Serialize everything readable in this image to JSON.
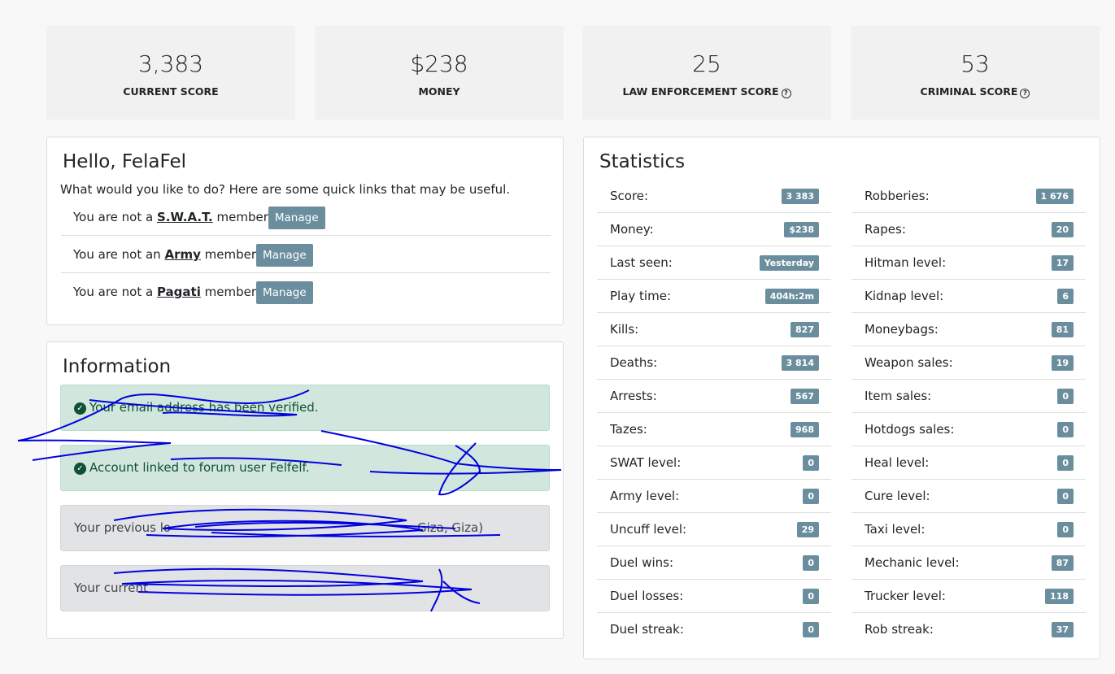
{
  "summary": [
    {
      "value": "3,383",
      "label": "CURRENT SCORE"
    },
    {
      "value": "$238",
      "label": "MONEY"
    },
    {
      "value": "25",
      "label": "LAW ENFORCEMENT SCORE",
      "help": true
    },
    {
      "value": "53",
      "label": "CRIMINAL SCORE",
      "help": true
    }
  ],
  "welcome": {
    "title": "Hello, FelaFel",
    "intro": "What would you like to do? Here are some quick links that may be useful.",
    "links": [
      {
        "prefix": "You are not a",
        "group": "S.W.A.T.",
        "suffix": "member",
        "button": "Manage"
      },
      {
        "prefix": "You are not an",
        "group": "Army",
        "suffix": "member",
        "button": "Manage"
      },
      {
        "prefix": "You are not a",
        "group": "Pagati",
        "suffix": "member",
        "button": "Manage"
      }
    ]
  },
  "information": {
    "title": "Information",
    "alerts": [
      {
        "kind": "success",
        "text": "Your email address has been verified."
      },
      {
        "kind": "success",
        "text": "Account linked to forum user Felfelf."
      },
      {
        "kind": "secondary",
        "text": "Your previous lo",
        "text_end": "Giza, Giza)"
      },
      {
        "kind": "secondary",
        "text": "Your current"
      }
    ]
  },
  "statistics": {
    "title": "Statistics",
    "left": [
      {
        "label": "Score:",
        "value": "3 383"
      },
      {
        "label": "Money:",
        "value": "$238"
      },
      {
        "label": "Last seen:",
        "value": "Yesterday"
      },
      {
        "label": "Play time:",
        "value": "404h:2m"
      },
      {
        "label": "Kills:",
        "value": "827"
      },
      {
        "label": "Deaths:",
        "value": "3 814"
      },
      {
        "label": "Arrests:",
        "value": "567"
      },
      {
        "label": "Tazes:",
        "value": "968"
      },
      {
        "label": "SWAT level:",
        "value": "0"
      },
      {
        "label": "Army level:",
        "value": "0"
      },
      {
        "label": "Uncuff level:",
        "value": "29"
      },
      {
        "label": "Duel wins:",
        "value": "0"
      },
      {
        "label": "Duel losses:",
        "value": "0"
      },
      {
        "label": "Duel streak:",
        "value": "0"
      }
    ],
    "right": [
      {
        "label": "Robberies:",
        "value": "1 676"
      },
      {
        "label": "Rapes:",
        "value": "20"
      },
      {
        "label": "Hitman level:",
        "value": "17"
      },
      {
        "label": "Kidnap level:",
        "value": "6"
      },
      {
        "label": "Moneybags:",
        "value": "81"
      },
      {
        "label": "Weapon sales:",
        "value": "19"
      },
      {
        "label": "Item sales:",
        "value": "0"
      },
      {
        "label": "Hotdogs sales:",
        "value": "0"
      },
      {
        "label": "Heal level:",
        "value": "0"
      },
      {
        "label": "Cure level:",
        "value": "0"
      },
      {
        "label": "Taxi level:",
        "value": "0"
      },
      {
        "label": "Mechanic level:",
        "value": "87"
      },
      {
        "label": "Trucker level:",
        "value": "118"
      },
      {
        "label": "Rob streak:",
        "value": "37"
      }
    ]
  }
}
